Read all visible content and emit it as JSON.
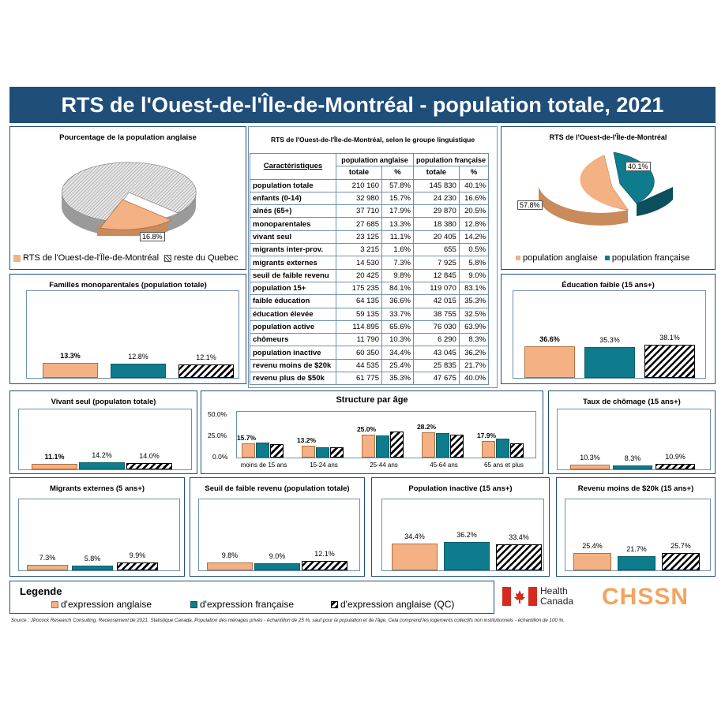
{
  "title": "RTS de l'Ouest-de-l'Île-de-Montréal - population totale, 2021",
  "pie_left": {
    "title": "Pourcentage de la population anglaise",
    "slice_label": "16.8%",
    "legend": [
      "RTS de l'Ouest-de-l'Île-de-Montréal",
      "reste du Quebec"
    ]
  },
  "pie_right": {
    "title": "RTS de l'Ouest-de-l'Île-de-Montréal",
    "label_fr": "40.1%",
    "label_en": "57.8%",
    "legend": [
      "population anglaise",
      "population française"
    ]
  },
  "table": {
    "title": "RTS de l'Ouest-de-l'Île-de-Montréal, selon le groupe linguistique",
    "col_char": "Caractéristiques",
    "col_en": "population anglaise",
    "col_fr": "population française",
    "sub_total": "totale",
    "sub_pct": "%",
    "rows": [
      [
        "population totale",
        "210 160",
        "57.8%",
        "145 830",
        "40.1%"
      ],
      [
        "enfants (0-14)",
        "32 980",
        "15.7%",
        "24 230",
        "16.6%"
      ],
      [
        "aînés (65+)",
        "37 710",
        "17.9%",
        "29 870",
        "20.5%"
      ],
      [
        "monoparentales",
        "27 685",
        "13.3%",
        "18 380",
        "12.8%"
      ],
      [
        "vivant seul",
        "23 125",
        "11.1%",
        "20 405",
        "14.2%"
      ],
      [
        "migrants inter-prov.",
        "3 215",
        "1.6%",
        "655",
        "0.5%"
      ],
      [
        "migrants externes",
        "14 530",
        "7.3%",
        "7 925",
        "5.8%"
      ],
      [
        "seuil de faible revenu",
        "20 425",
        "9.8%",
        "12 845",
        "9.0%"
      ],
      [
        "population 15+",
        "175 235",
        "84.1%",
        "119 070",
        "83.1%"
      ],
      [
        "faible éducation",
        "64 135",
        "36.6%",
        "42 015",
        "35.3%"
      ],
      [
        "éducation élevée",
        "59 135",
        "33.7%",
        "38 755",
        "32.5%"
      ],
      [
        "population active",
        "114 895",
        "65.6%",
        "76 030",
        "63.9%"
      ],
      [
        "chômeurs",
        "11 790",
        "10.3%",
        "6 290",
        "8.3%"
      ],
      [
        "population inactive",
        "60 350",
        "34.4%",
        "43 045",
        "36.2%"
      ],
      [
        "revenu moins de $20k",
        "44 535",
        "25.4%",
        "25 835",
        "21.7%"
      ],
      [
        "revenu plus de $50k",
        "61 775",
        "35.3%",
        "47 675",
        "40.0%"
      ]
    ]
  },
  "structure": {
    "title": "Structure par âge",
    "yticks": [
      "50.0%",
      "25.0%",
      "0.0%"
    ],
    "top_labels": [
      "15.7%",
      "13.2%",
      "25.0%",
      "28.2%",
      "17.9%"
    ]
  },
  "legend": {
    "title": "Legende",
    "items": [
      "d'expression anglaise",
      "d'expression française",
      "d'expression anglaise (QC)"
    ]
  },
  "logos": {
    "health": "Health",
    "canada": "Canada",
    "chssn": "CHSSN"
  },
  "source": "Source : JPocock Research Consulting. Recensement de 2021. Statistique Canada. Population des ménages privés - échantillon de 25 %, sauf pour la population et de l'âge. Cela comprend les logements collectifs non institutionnels - échantillon de 100 %.",
  "colors": {
    "anglaise": "#f4b183",
    "francaise": "#0e7c8c",
    "banner": "#1f4e79"
  },
  "chart_data": [
    {
      "type": "pie",
      "title": "Pourcentage de la population anglaise",
      "categories": [
        "RTS de l'Ouest-de-l'Île-de-Montréal",
        "reste du Quebec"
      ],
      "values": [
        16.8,
        83.2
      ]
    },
    {
      "type": "pie",
      "title": "RTS de l'Ouest-de-l'Île-de-Montréal",
      "categories": [
        "population anglaise",
        "population française"
      ],
      "values": [
        57.8,
        40.1
      ]
    },
    {
      "type": "bar",
      "title": "Familles monoparentales (population totale)",
      "values": [
        13.3,
        12.8,
        12.1
      ],
      "labels": [
        "13.3%",
        "12.8%",
        "12.1%"
      ]
    },
    {
      "type": "bar",
      "title": "Éducation faible (15 ans+)",
      "values": [
        36.6,
        35.3,
        38.1
      ],
      "labels": [
        "36.6%",
        "35.3%",
        "38.1%"
      ]
    },
    {
      "type": "bar",
      "title": "Vivant seul (populaton totale)",
      "values": [
        11.1,
        14.2,
        14.0
      ],
      "labels": [
        "11.1%",
        "14.2%",
        "14.0%"
      ]
    },
    {
      "type": "bar",
      "title": "Taux de chômage (15 ans+)",
      "values": [
        10.3,
        8.3,
        10.9
      ],
      "labels": [
        "10.3%",
        "8.3%",
        "10.9%"
      ]
    },
    {
      "type": "bar",
      "title": "Migrants externes (5 ans+)",
      "values": [
        7.3,
        5.8,
        9.9
      ],
      "labels": [
        "7.3%",
        "5.8%",
        "9.9%"
      ]
    },
    {
      "type": "bar",
      "title": "Seuil de faible revenu (population totale)",
      "values": [
        9.8,
        9.0,
        12.1
      ],
      "labels": [
        "9.8%",
        "9.0%",
        "12.1%"
      ]
    },
    {
      "type": "bar",
      "title": "Population inactive (15 ans+)",
      "values": [
        34.4,
        36.2,
        33.4
      ],
      "labels": [
        "34.4%",
        "36.2%",
        "33.4%"
      ]
    },
    {
      "type": "bar",
      "title": "Revenu moins de $20k (15 ans+)",
      "values": [
        25.4,
        21.7,
        25.7
      ],
      "labels": [
        "25.4%",
        "21.7%",
        "25.7%"
      ]
    },
    {
      "type": "bar",
      "title": "Structure par âge",
      "categories": [
        "moins de 15 ans",
        "15-24 ans",
        "25-44 ans",
        "45-64 ans",
        "65 ans et plus"
      ],
      "ylim": [
        0,
        50
      ],
      "series": [
        {
          "values": [
            15.7,
            13.2,
            25.0,
            28.2,
            17.9
          ]
        },
        {
          "values": [
            16.6,
            11.6,
            24.3,
            27.1,
            20.5
          ]
        },
        {
          "values": [
            15.0,
            11.5,
            28.5,
            25.4,
            15.6
          ]
        }
      ]
    }
  ]
}
